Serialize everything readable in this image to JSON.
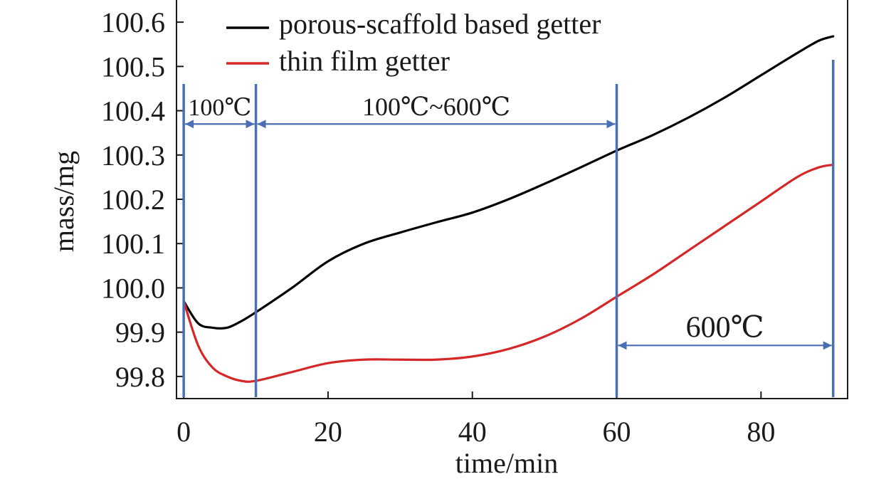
{
  "chart_data": {
    "type": "line",
    "title": "",
    "xlabel": "time/min",
    "ylabel": "mass/mg",
    "xlim": [
      -1,
      92
    ],
    "ylim": [
      99.75,
      100.65
    ],
    "x_ticks": [
      0,
      20,
      40,
      60,
      80
    ],
    "x_tick_labels": [
      "0",
      "20",
      "40",
      "60",
      "80"
    ],
    "y_ticks": [
      99.8,
      99.9,
      100.0,
      100.1,
      100.2,
      100.3,
      100.4,
      100.5,
      100.6
    ],
    "y_tick_labels": [
      "99.8",
      "99.9",
      "100.0",
      "100.1",
      "100.2",
      "100.3",
      "100.4",
      "100.5",
      "100.6"
    ],
    "grid": false,
    "legend_position": "top-left",
    "series": [
      {
        "name": "porous-scaffold based getter",
        "color": "#000000",
        "x": [
          0,
          2,
          4,
          6,
          8,
          10,
          15,
          20,
          25,
          30,
          35,
          40,
          45,
          50,
          55,
          60,
          65,
          70,
          75,
          80,
          85,
          88,
          90
        ],
        "y": [
          99.97,
          99.92,
          99.91,
          99.91,
          99.925,
          99.945,
          100.0,
          100.06,
          100.1,
          100.125,
          100.148,
          100.17,
          100.2,
          100.235,
          100.272,
          100.31,
          100.345,
          100.385,
          100.43,
          100.48,
          100.53,
          100.558,
          100.568
        ]
      },
      {
        "name": "thin film getter",
        "color": "#d62728",
        "x": [
          0,
          2,
          4,
          6,
          8,
          10,
          15,
          20,
          25,
          30,
          35,
          40,
          45,
          50,
          55,
          60,
          65,
          70,
          75,
          80,
          85,
          88,
          90
        ],
        "y": [
          99.97,
          99.87,
          99.82,
          99.8,
          99.79,
          99.79,
          99.81,
          99.83,
          99.838,
          99.838,
          99.838,
          99.845,
          99.862,
          99.89,
          99.93,
          99.98,
          100.03,
          100.085,
          100.14,
          100.195,
          100.25,
          100.272,
          100.278
        ]
      }
    ],
    "vertical_markers": [
      0,
      10,
      60,
      90
    ],
    "annotations": [
      {
        "text": "100℃",
        "from": 0,
        "to": 10,
        "y": 100.37
      },
      {
        "text": "100℃~600℃",
        "from": 10,
        "to": 60,
        "y": 100.37
      },
      {
        "text": "600℃",
        "from": 60,
        "to": 90,
        "y": 99.87
      }
    ],
    "marker_color": "#4a6fb5"
  }
}
